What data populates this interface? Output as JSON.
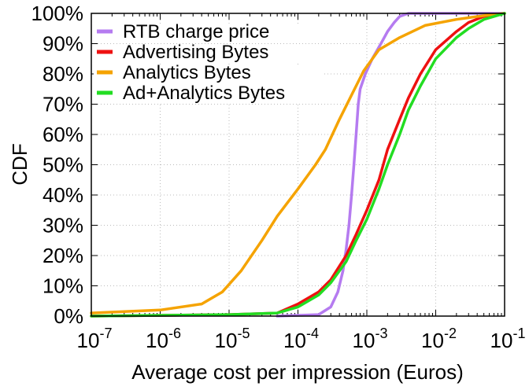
{
  "chart_data": {
    "type": "line",
    "title": "",
    "xlabel": "Average cost per impression (Euros)",
    "ylabel": "CDF",
    "x_scale": "log",
    "xlim": [
      1e-07,
      0.1
    ],
    "ylim": [
      0,
      100
    ],
    "x_ticks": [
      {
        "value": 1e-07,
        "base": "10",
        "exp": "-7"
      },
      {
        "value": 1e-06,
        "base": "10",
        "exp": "-6"
      },
      {
        "value": 1e-05,
        "base": "10",
        "exp": "-5"
      },
      {
        "value": 0.0001,
        "base": "10",
        "exp": "-4"
      },
      {
        "value": 0.001,
        "base": "10",
        "exp": "-3"
      },
      {
        "value": 0.01,
        "base": "10",
        "exp": "-2"
      },
      {
        "value": 0.1,
        "base": "10",
        "exp": "-1"
      }
    ],
    "y_ticks": [
      {
        "value": 0,
        "label": "0%"
      },
      {
        "value": 10,
        "label": "10%"
      },
      {
        "value": 20,
        "label": "20%"
      },
      {
        "value": 30,
        "label": "30%"
      },
      {
        "value": 40,
        "label": "40%"
      },
      {
        "value": 50,
        "label": "50%"
      },
      {
        "value": 60,
        "label": "60%"
      },
      {
        "value": 70,
        "label": "70%"
      },
      {
        "value": 80,
        "label": "80%"
      },
      {
        "value": 90,
        "label": "90%"
      },
      {
        "value": 100,
        "label": "100%"
      }
    ],
    "grid": true,
    "legend_position": "top-left",
    "series": [
      {
        "name": "RTB charge price",
        "color": "#b57bf0",
        "points": [
          [
            5e-05,
            0
          ],
          [
            0.0002,
            0.5
          ],
          [
            0.0003,
            3
          ],
          [
            0.00038,
            8
          ],
          [
            0.00045,
            15
          ],
          [
            0.0005,
            22
          ],
          [
            0.00055,
            30
          ],
          [
            0.0006,
            40
          ],
          [
            0.00065,
            50
          ],
          [
            0.0007,
            60
          ],
          [
            0.00075,
            70
          ],
          [
            0.0008,
            75
          ],
          [
            0.00095,
            80
          ],
          [
            0.0012,
            85
          ],
          [
            0.0016,
            90
          ],
          [
            0.002,
            94
          ],
          [
            0.0025,
            97
          ],
          [
            0.003,
            99
          ],
          [
            0.004,
            100
          ],
          [
            0.1,
            100
          ]
        ]
      },
      {
        "name": "Advertising Bytes",
        "color": "#ee1111",
        "points": [
          [
            1e-07,
            0
          ],
          [
            1e-05,
            0.5
          ],
          [
            5e-05,
            1
          ],
          [
            0.0001,
            4
          ],
          [
            0.0002,
            8
          ],
          [
            0.0003,
            12
          ],
          [
            0.0005,
            20
          ],
          [
            0.0007,
            27
          ],
          [
            0.001,
            35
          ],
          [
            0.0015,
            45
          ],
          [
            0.002,
            55
          ],
          [
            0.003,
            65
          ],
          [
            0.004,
            72
          ],
          [
            0.006,
            80
          ],
          [
            0.01,
            88
          ],
          [
            0.02,
            94
          ],
          [
            0.03,
            97
          ],
          [
            0.05,
            99
          ],
          [
            0.1,
            100
          ]
        ]
      },
      {
        "name": "Analytics Bytes",
        "color": "#f5a300",
        "points": [
          [
            1e-07,
            1
          ],
          [
            1e-06,
            2
          ],
          [
            4e-06,
            4
          ],
          [
            8e-06,
            8
          ],
          [
            1.5e-05,
            15
          ],
          [
            3e-05,
            25
          ],
          [
            5e-05,
            33
          ],
          [
            0.0001,
            42
          ],
          [
            0.00018,
            50
          ],
          [
            0.00025,
            55
          ],
          [
            0.0004,
            65
          ],
          [
            0.0006,
            73
          ],
          [
            0.0009,
            81
          ],
          [
            0.0015,
            88
          ],
          [
            0.003,
            92
          ],
          [
            0.007,
            96
          ],
          [
            0.02,
            98
          ],
          [
            0.06,
            99.5
          ],
          [
            0.1,
            100
          ]
        ]
      },
      {
        "name": "Ad+Analytics Bytes",
        "color": "#22dd22",
        "points": [
          [
            1e-07,
            0
          ],
          [
            1e-05,
            0.5
          ],
          [
            5e-05,
            1
          ],
          [
            0.0001,
            3
          ],
          [
            0.0002,
            7
          ],
          [
            0.0003,
            11
          ],
          [
            0.0005,
            18
          ],
          [
            0.0007,
            25
          ],
          [
            0.001,
            32
          ],
          [
            0.0015,
            42
          ],
          [
            0.002,
            50
          ],
          [
            0.003,
            60
          ],
          [
            0.004,
            68
          ],
          [
            0.006,
            76
          ],
          [
            0.01,
            85
          ],
          [
            0.02,
            92
          ],
          [
            0.03,
            95
          ],
          [
            0.05,
            98
          ],
          [
            0.1,
            100
          ]
        ]
      }
    ]
  }
}
